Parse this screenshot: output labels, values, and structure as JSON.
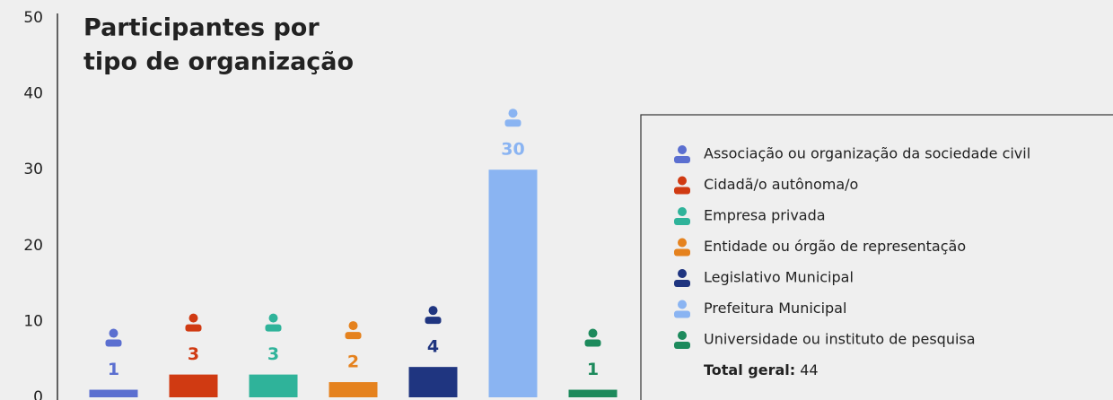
{
  "chart_data": {
    "type": "bar",
    "title": [
      "Participantes por",
      "tipo de organização"
    ],
    "categories": [
      "Associação ou organização da sociedade civil",
      "Cidadã/o autônoma/o",
      "Empresa privada",
      "Entidade ou órgão de representação",
      "Legislativo Municipal",
      "Prefeitura Municipal",
      "Universidade ou instituto de pesquisa"
    ],
    "values": [
      1,
      3,
      3,
      2,
      4,
      30,
      1
    ],
    "colors": [
      "#5b6fd0",
      "#d03a12",
      "#2fb39a",
      "#e5821e",
      "#1f3580",
      "#8ab4f2",
      "#1d8a5c"
    ],
    "ylim": [
      0,
      50
    ],
    "yticks": [
      0,
      10,
      20,
      30,
      40,
      50
    ],
    "total": {
      "label": "Total geral:",
      "value": 44
    }
  }
}
